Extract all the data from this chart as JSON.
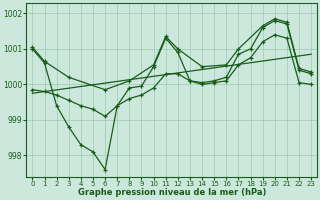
{
  "line_zigzag": {
    "x": [
      0,
      1,
      2,
      3,
      4,
      5,
      6,
      7,
      8,
      9,
      10,
      11,
      12,
      13,
      14,
      15,
      16,
      17,
      18,
      19,
      20,
      21,
      22,
      23
    ],
    "y": [
      1001.0,
      1000.6,
      999.4,
      998.8,
      998.3,
      998.1,
      997.6,
      999.4,
      999.9,
      999.95,
      1000.5,
      1001.3,
      1000.9,
      1000.1,
      1000.05,
      1000.1,
      1000.2,
      1000.85,
      1001.0,
      1001.6,
      1001.8,
      1001.7,
      1000.4,
      1000.3
    ]
  },
  "line_upper": {
    "x": [
      0,
      1,
      3,
      6,
      8,
      10,
      11,
      12,
      14,
      16,
      17,
      19,
      20,
      21,
      22,
      23
    ],
    "y": [
      1001.05,
      1000.65,
      1000.2,
      999.85,
      1000.1,
      1000.55,
      1001.35,
      1001.0,
      1000.5,
      1000.55,
      1001.0,
      1001.65,
      1001.85,
      1001.75,
      1000.45,
      1000.35
    ]
  },
  "line_lower": {
    "x": [
      0,
      1,
      2,
      3,
      4,
      5,
      6,
      7,
      8,
      9,
      10,
      11,
      12,
      13,
      14,
      15,
      16,
      17,
      18,
      19,
      20,
      21,
      22,
      23
    ],
    "y": [
      999.85,
      999.8,
      999.7,
      999.55,
      999.4,
      999.3,
      999.1,
      999.4,
      999.6,
      999.7,
      999.9,
      1000.3,
      1000.3,
      1000.1,
      1000.0,
      1000.05,
      1000.1,
      1000.55,
      1000.75,
      1001.2,
      1001.4,
      1001.3,
      1000.05,
      1000.0
    ]
  },
  "line_trend": {
    "x": [
      0,
      23
    ],
    "y": [
      999.75,
      1000.85
    ]
  },
  "ylim": [
    997.4,
    1002.3
  ],
  "yticks": [
    998,
    999,
    1000,
    1001,
    1002
  ],
  "xticks": [
    0,
    1,
    2,
    3,
    4,
    5,
    6,
    7,
    8,
    9,
    10,
    11,
    12,
    13,
    14,
    15,
    16,
    17,
    18,
    19,
    20,
    21,
    22,
    23
  ],
  "line_color": "#1a5c1a",
  "bg_color": "#cce8dc",
  "grid_color": "#9ec8b4",
  "xlabel": "Graphe pression niveau de la mer (hPa)",
  "xlabel_color": "#1a5c1a",
  "tick_color": "#1a5c1a"
}
